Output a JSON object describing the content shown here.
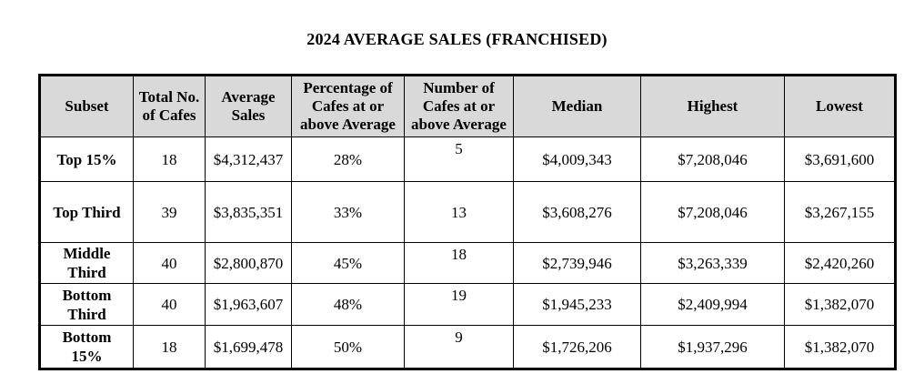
{
  "title": "2024 AVERAGE SALES (FRANCHISED)",
  "headers": {
    "subset": "Subset",
    "total": [
      "Total No.",
      "of Cafes"
    ],
    "avg": [
      "Average",
      "Sales"
    ],
    "pct": [
      "Percentage of",
      "Cafes at or",
      "above Average"
    ],
    "num": [
      "Number of",
      "Cafes at or",
      "above Average"
    ],
    "median": "Median",
    "highest": "Highest",
    "lowest": "Lowest"
  },
  "rows": [
    {
      "subset": [
        "Top 15%"
      ],
      "total": "18",
      "avg": "$4,312,437",
      "pct": "28%",
      "num": "5",
      "median": "$4,009,343",
      "highest": "$7,208,046",
      "lowest": "$3,691,600"
    },
    {
      "subset": [
        "Top Third"
      ],
      "total": "39",
      "avg": "$3,835,351",
      "pct": "33%",
      "num": "13",
      "median": "$3,608,276",
      "highest": "$7,208,046",
      "lowest": "$3,267,155"
    },
    {
      "subset": [
        "Middle",
        "Third"
      ],
      "total": "40",
      "avg": "$2,800,870",
      "pct": "45%",
      "num": "18",
      "median": "$2,739,946",
      "highest": "$3,263,339",
      "lowest": "$2,420,260"
    },
    {
      "subset": [
        "Bottom",
        "Third"
      ],
      "total": "40",
      "avg": "$1,963,607",
      "pct": "48%",
      "num": "19",
      "median": "$1,945,233",
      "highest": "$2,409,994",
      "lowest": "$1,382,070"
    },
    {
      "subset": [
        "Bottom",
        "15%"
      ],
      "total": "18",
      "avg": "$1,699,478",
      "pct": "50%",
      "num": "9",
      "median": "$1,726,206",
      "highest": "$1,937,296",
      "lowest": "$1,382,070"
    }
  ]
}
